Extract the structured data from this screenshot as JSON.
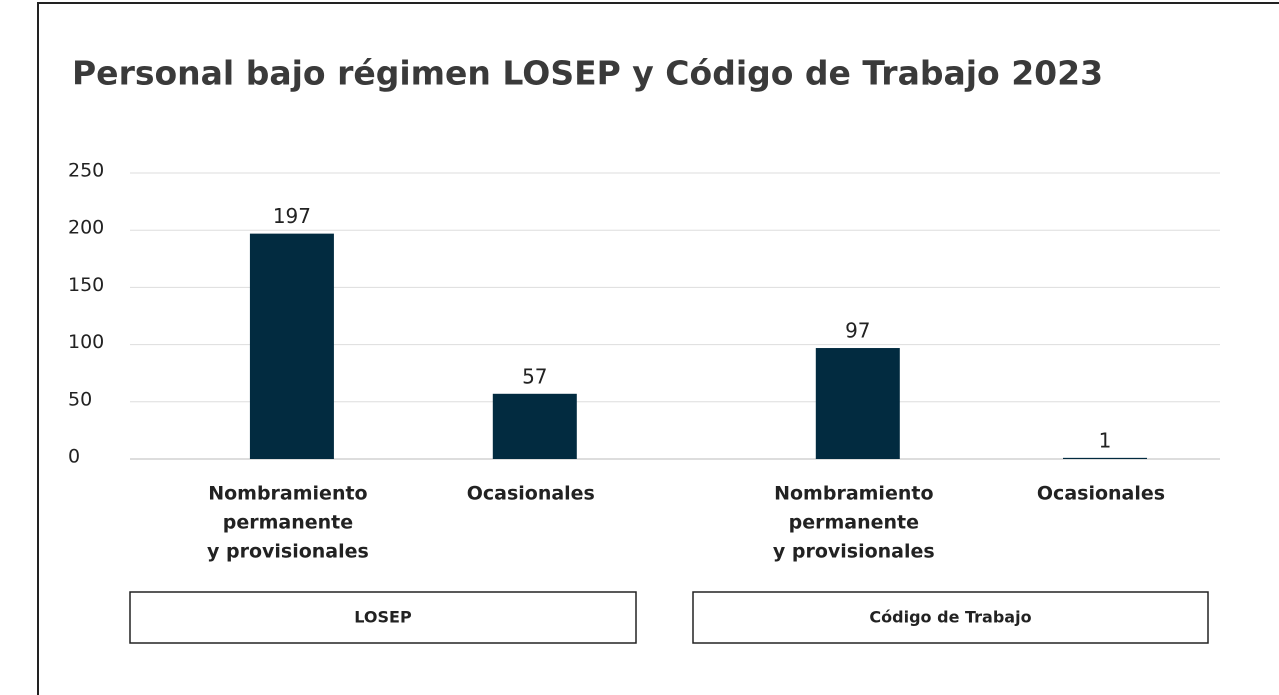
{
  "chart_data": {
    "type": "bar",
    "title": "Personal bajo régimen LOSEP y Código de Trabajo 2023",
    "categories": [
      [
        "Nombramiento",
        "permanente",
        "y provisionales"
      ],
      [
        "Ocasionales"
      ],
      [
        "Nombramiento",
        "permanente",
        "y provisionales"
      ],
      [
        "Ocasionales"
      ]
    ],
    "groups": [
      "LOSEP",
      "Código de Trabajo"
    ],
    "values": [
      197,
      57,
      97,
      1
    ],
    "color": "#022b40",
    "ylim": [
      0,
      250
    ],
    "yticks": [
      0,
      50,
      100,
      150,
      200,
      250
    ],
    "grid": true
  }
}
